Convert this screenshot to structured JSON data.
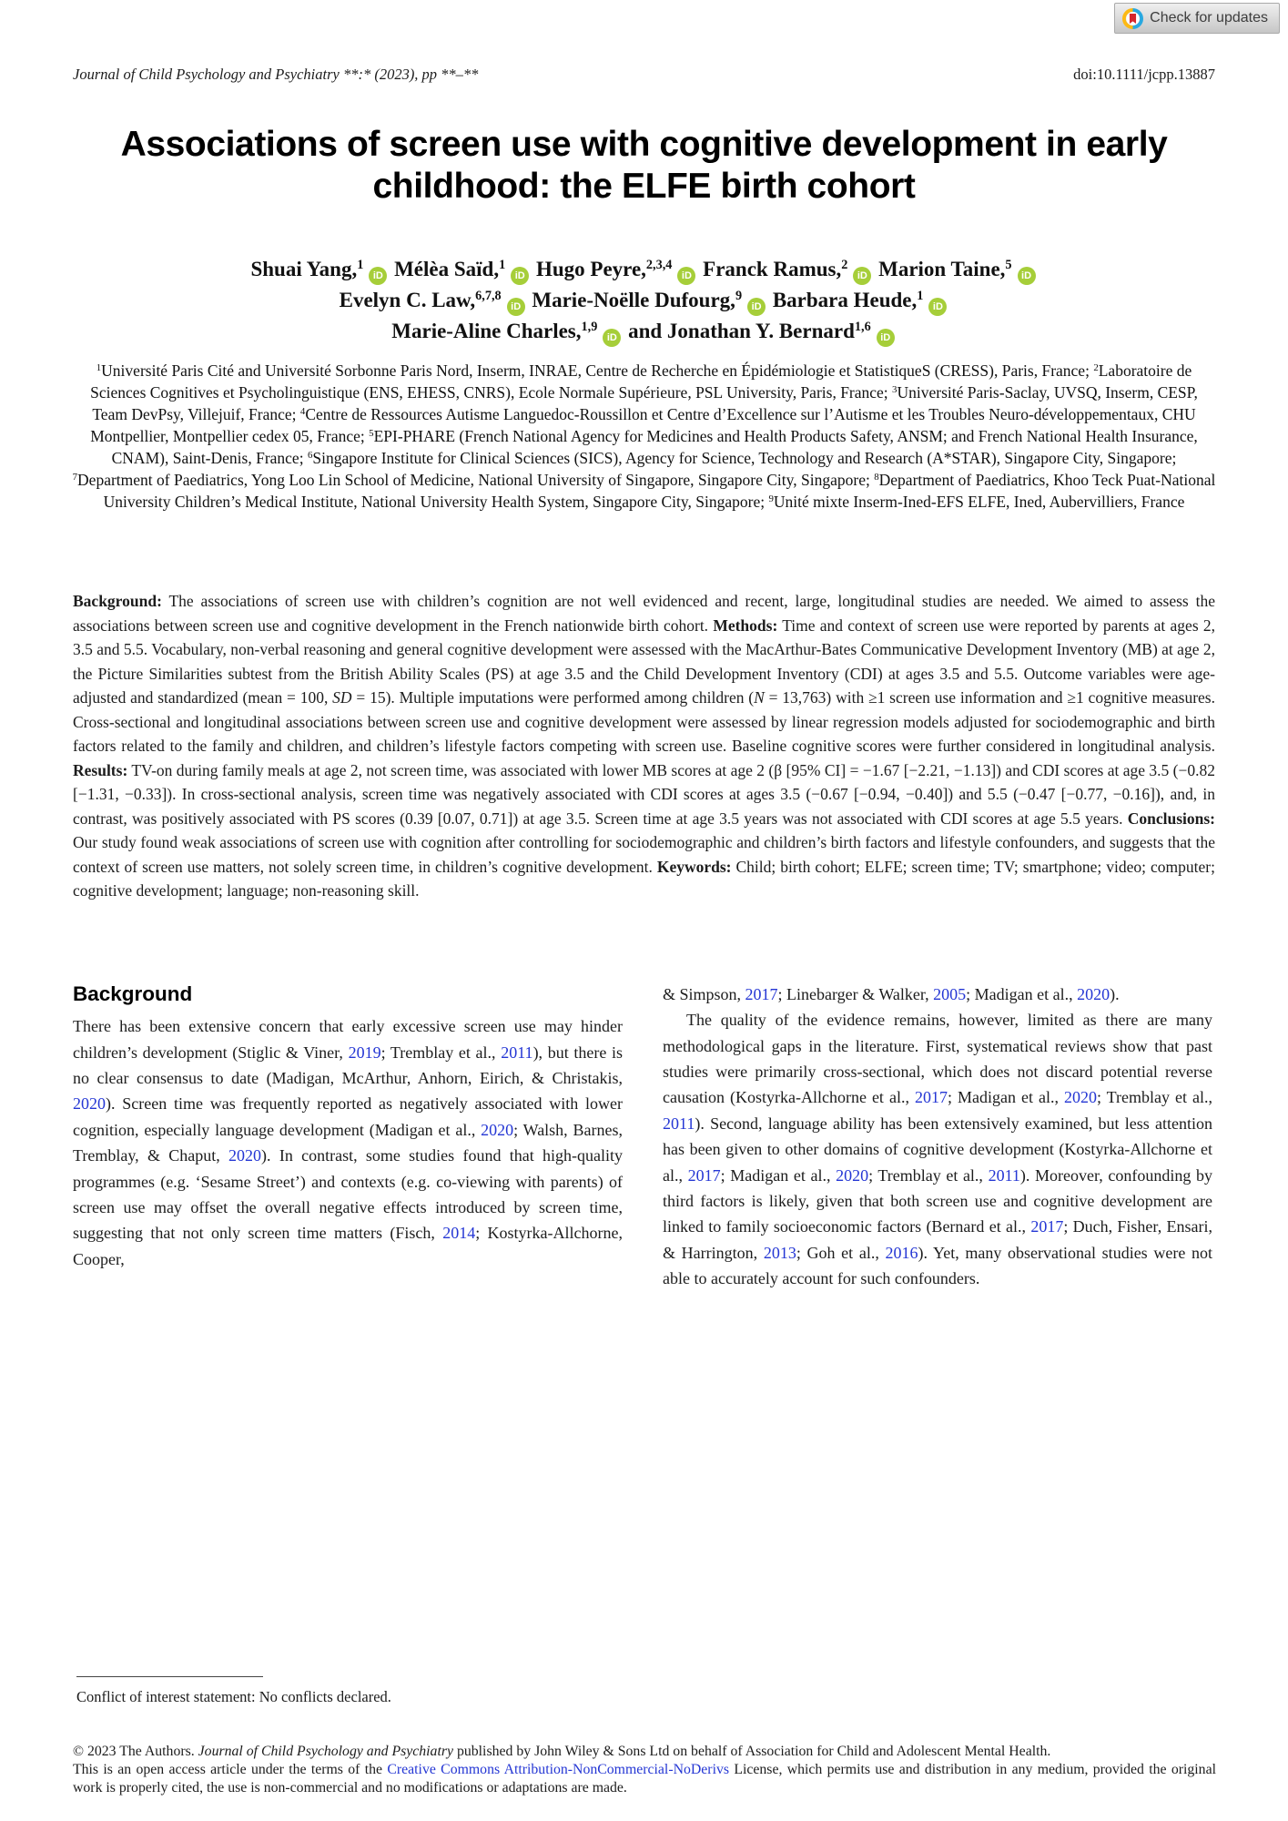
{
  "badge": {
    "label": "Check for updates"
  },
  "header": {
    "journal_line": "Journal of Child Psychology and Psychiatry **:* (2023), pp **–**",
    "doi": "doi:10.1111/jcpp.13887"
  },
  "title": "Associations of screen use with cognitive development in early childhood: the ELFE birth cohort",
  "authors": {
    "lines": [
      [
        {
          "t": "Shuai Yang,"
        },
        {
          "sup": "1"
        },
        {
          "orcid": 1
        },
        {
          "t": " Mélèa Saïd,"
        },
        {
          "sup": "1"
        },
        {
          "orcid": 1
        },
        {
          "t": " Hugo Peyre,"
        },
        {
          "sup": "2,3,4"
        },
        {
          "orcid": 1
        },
        {
          "t": " Franck Ramus,"
        },
        {
          "sup": "2"
        },
        {
          "orcid": 1
        },
        {
          "t": " Marion Taine,"
        },
        {
          "sup": "5"
        },
        {
          "orcid": 1
        }
      ],
      [
        {
          "t": "Evelyn C. Law,"
        },
        {
          "sup": "6,7,8"
        },
        {
          "orcid": 1
        },
        {
          "t": " Marie-Noëlle Dufourg,"
        },
        {
          "sup": "9"
        },
        {
          "orcid": 1
        },
        {
          "t": " Barbara Heude,"
        },
        {
          "sup": "1"
        },
        {
          "orcid": 1
        }
      ],
      [
        {
          "t": "Marie-Aline Charles,"
        },
        {
          "sup": "1,9"
        },
        {
          "orcid": 1
        },
        {
          "t": " and Jonathan Y. Bernard"
        },
        {
          "sup": "1,6"
        },
        {
          "orcid": 1
        }
      ]
    ]
  },
  "affiliations": [
    {
      "sup": "1"
    },
    {
      "t": "Université Paris Cité and Université Sorbonne Paris Nord, Inserm, INRAE, Centre de Recherche en Épidémiologie et StatistiqueS (CRESS), Paris, France; "
    },
    {
      "sup": "2"
    },
    {
      "t": "Laboratoire de Sciences Cognitives et Psycholinguistique (ENS, EHESS, CNRS), Ecole Normale Supérieure, PSL University, Paris, France; "
    },
    {
      "sup": "3"
    },
    {
      "t": "Université Paris-Saclay, UVSQ, Inserm, CESP, Team DevPsy, Villejuif, France; "
    },
    {
      "sup": "4"
    },
    {
      "t": "Centre de Ressources Autisme Languedoc-Roussillon et Centre d’Excellence sur l’Autisme et les Troubles Neuro-développementaux, CHU Montpellier, Montpellier cedex 05, France; "
    },
    {
      "sup": "5"
    },
    {
      "t": "EPI-PHARE (French National Agency for Medicines and Health Products Safety, ANSM; and French National Health Insurance, CNAM), Saint-Denis, France; "
    },
    {
      "sup": "6"
    },
    {
      "t": "Singapore Institute for Clinical Sciences (SICS), Agency for Science, Technology and Research (A*STAR), Singapore City, Singapore; "
    },
    {
      "sup": "7"
    },
    {
      "t": "Department of Paediatrics, Yong Loo Lin School of Medicine, National University of Singapore, Singapore City, Singapore; "
    },
    {
      "sup": "8"
    },
    {
      "t": "Department of Paediatrics, Khoo Teck Puat-National University Children’s Medical Institute, National University Health System, Singapore City, Singapore; "
    },
    {
      "sup": "9"
    },
    {
      "t": "Unité mixte Inserm-Ined-EFS ELFE, Ined, Aubervilliers, France"
    }
  ],
  "abstract": [
    {
      "t": "Background:",
      "b": 1
    },
    {
      "t": " The associations of screen use with children’s cognition are not well evidenced and recent, large, longitudinal studies are needed. We aimed to assess the associations between screen use and cognitive development in the French nationwide birth cohort. "
    },
    {
      "t": "Methods:",
      "b": 1
    },
    {
      "t": " Time and context of screen use were reported by parents at ages 2, 3.5 and 5.5. Vocabulary, non-verbal reasoning and general cognitive development were assessed with the MacArthur-Bates Communicative Development Inventory (MB) at age 2, the Picture Similarities subtest from the British Ability Scales (PS) at age 3.5 and the Child Development Inventory (CDI) at ages 3.5 and 5.5. Outcome variables were age-adjusted and standardized (mean = 100, "
    },
    {
      "t": "SD",
      "i": 1
    },
    {
      "t": " = 15). Multiple imputations were performed among children ("
    },
    {
      "t": "N",
      "i": 1
    },
    {
      "t": " = 13,763) with ≥1 screen use information and ≥1 cognitive measures. Cross-sectional and longitudinal associations between screen use and cognitive development were assessed by linear regression models adjusted for sociodemographic and birth factors related to the family and children, and children’s lifestyle factors competing with screen use. Baseline cognitive scores were further considered in longitudinal analysis. "
    },
    {
      "t": "Results:",
      "b": 1
    },
    {
      "t": " TV-on during family meals at age 2, not screen time, was associated with lower MB scores at age 2 (β [95% CI] = −1.67 [−2.21, −1.13]) and CDI scores at age 3.5 (−0.82 [−1.31, −0.33]). In cross-sectional analysis, screen time was negatively associated with CDI scores at ages 3.5 (−0.67 [−0.94, −0.40]) and 5.5 (−0.47 [−0.77, −0.16]), and, in contrast, was positively associated with PS scores (0.39 [0.07, 0.71]) at age 3.5. Screen time at age 3.5 years was not associated with CDI scores at age 5.5 years. "
    },
    {
      "t": "Conclusions:",
      "b": 1
    },
    {
      "t": " Our study found weak associations of screen use with cognition after controlling for sociodemographic and children’s birth factors and lifestyle confounders, and suggests that the context of screen use matters, not solely screen time, in children’s cognitive development. "
    },
    {
      "t": "Keywords:",
      "b": 1
    },
    {
      "t": " Child; birth cohort; ELFE; screen time; TV; smartphone; video; computer; cognitive development; language; non-reasoning skill."
    }
  ],
  "body": {
    "heading": "Background",
    "left_paragraph": [
      {
        "t": "There has been extensive concern that early excessive screen use may hinder children’s development (Stiglic & Viner, "
      },
      {
        "t": "2019",
        "link": 1
      },
      {
        "t": "; Tremblay et al., "
      },
      {
        "t": "2011",
        "link": 1
      },
      {
        "t": "), but there is no clear consensus to date (Madigan, McArthur, Anhorn, Eirich, & Christakis, "
      },
      {
        "t": "2020",
        "link": 1
      },
      {
        "t": "). Screen time was frequently reported as negatively associated with lower cognition, especially language development (Madigan et al., "
      },
      {
        "t": "2020",
        "link": 1
      },
      {
        "t": "; Walsh, Barnes, Tremblay, & Chaput, "
      },
      {
        "t": "2020",
        "link": 1
      },
      {
        "t": "). In contrast, some studies found that high-quality programmes (e.g. ‘Sesame Street’) and contexts (e.g. co-viewing with parents) of screen use may offset the overall negative effects introduced by screen time, suggesting that not only screen time matters (Fisch, "
      },
      {
        "t": "2014",
        "link": 1
      },
      {
        "t": "; Kostyrka-Allchorne, Cooper,"
      }
    ],
    "right_paragraphs": [
      [
        {
          "t": "& Simpson, "
        },
        {
          "t": "2017",
          "link": 1
        },
        {
          "t": "; Linebarger & Walker, "
        },
        {
          "t": "2005",
          "link": 1
        },
        {
          "t": "; Madigan et al., "
        },
        {
          "t": "2020",
          "link": 1
        },
        {
          "t": ")."
        }
      ],
      [
        {
          "t": "The quality of the evidence remains, however, limited as there are many methodological gaps in the literature. First, systematical reviews show that past studies were primarily cross-sectional, which does not discard potential reverse causation (Kostyrka-Allchorne et al., "
        },
        {
          "t": "2017",
          "link": 1
        },
        {
          "t": "; Madigan et al., "
        },
        {
          "t": "2020",
          "link": 1
        },
        {
          "t": "; Tremblay et al., "
        },
        {
          "t": "2011",
          "link": 1
        },
        {
          "t": "). Second, language ability has been extensively examined, but less attention has been given to other domains of cognitive development (Kostyrka-Allchorne et al., "
        },
        {
          "t": "2017",
          "link": 1
        },
        {
          "t": "; Madigan et al., "
        },
        {
          "t": "2020",
          "link": 1
        },
        {
          "t": "; Tremblay et al., "
        },
        {
          "t": "2011",
          "link": 1
        },
        {
          "t": "). Moreover, confounding by third factors is likely, given that both screen use and cognitive development are linked to family socioeconomic factors (Bernard et al., "
        },
        {
          "t": "2017",
          "link": 1
        },
        {
          "t": "; Duch, Fisher, Ensari, & Harrington, "
        },
        {
          "t": "2013",
          "link": 1
        },
        {
          "t": "; Goh et al., "
        },
        {
          "t": "2016",
          "link": 1
        },
        {
          "t": "). Yet, many observational studies were not able to accurately account for such confounders."
        }
      ]
    ]
  },
  "footnote": {
    "conflict": "Conflict of interest statement: No conflicts declared."
  },
  "footer": {
    "line1": [
      {
        "t": "© 2023 The Authors. "
      },
      {
        "t": "Journal of Child Psychology and Psychiatry",
        "i": 1
      },
      {
        "t": " published by John Wiley & Sons Ltd on behalf of Association for Child and Adolescent Mental Health."
      }
    ],
    "line2": [
      {
        "t": "This is an open access article under the terms of the "
      },
      {
        "t": "Creative Commons Attribution-NonCommercial-NoDerivs",
        "link": 1,
        "ln": "cc-license-link"
      },
      {
        "t": " License, which permits use and distribution in any medium, provided the original work is properly cited, the use is non-commercial and no modifications or adaptations are made."
      }
    ]
  },
  "colors": {
    "link_blue": "#2436d4",
    "orcid_green": "#a6ce39",
    "crossmark_red": "#d6262c",
    "crossmark_blue": "#28a8e0",
    "crossmark_yellow": "#fdb913",
    "badge_text": "#3d3d3d"
  }
}
